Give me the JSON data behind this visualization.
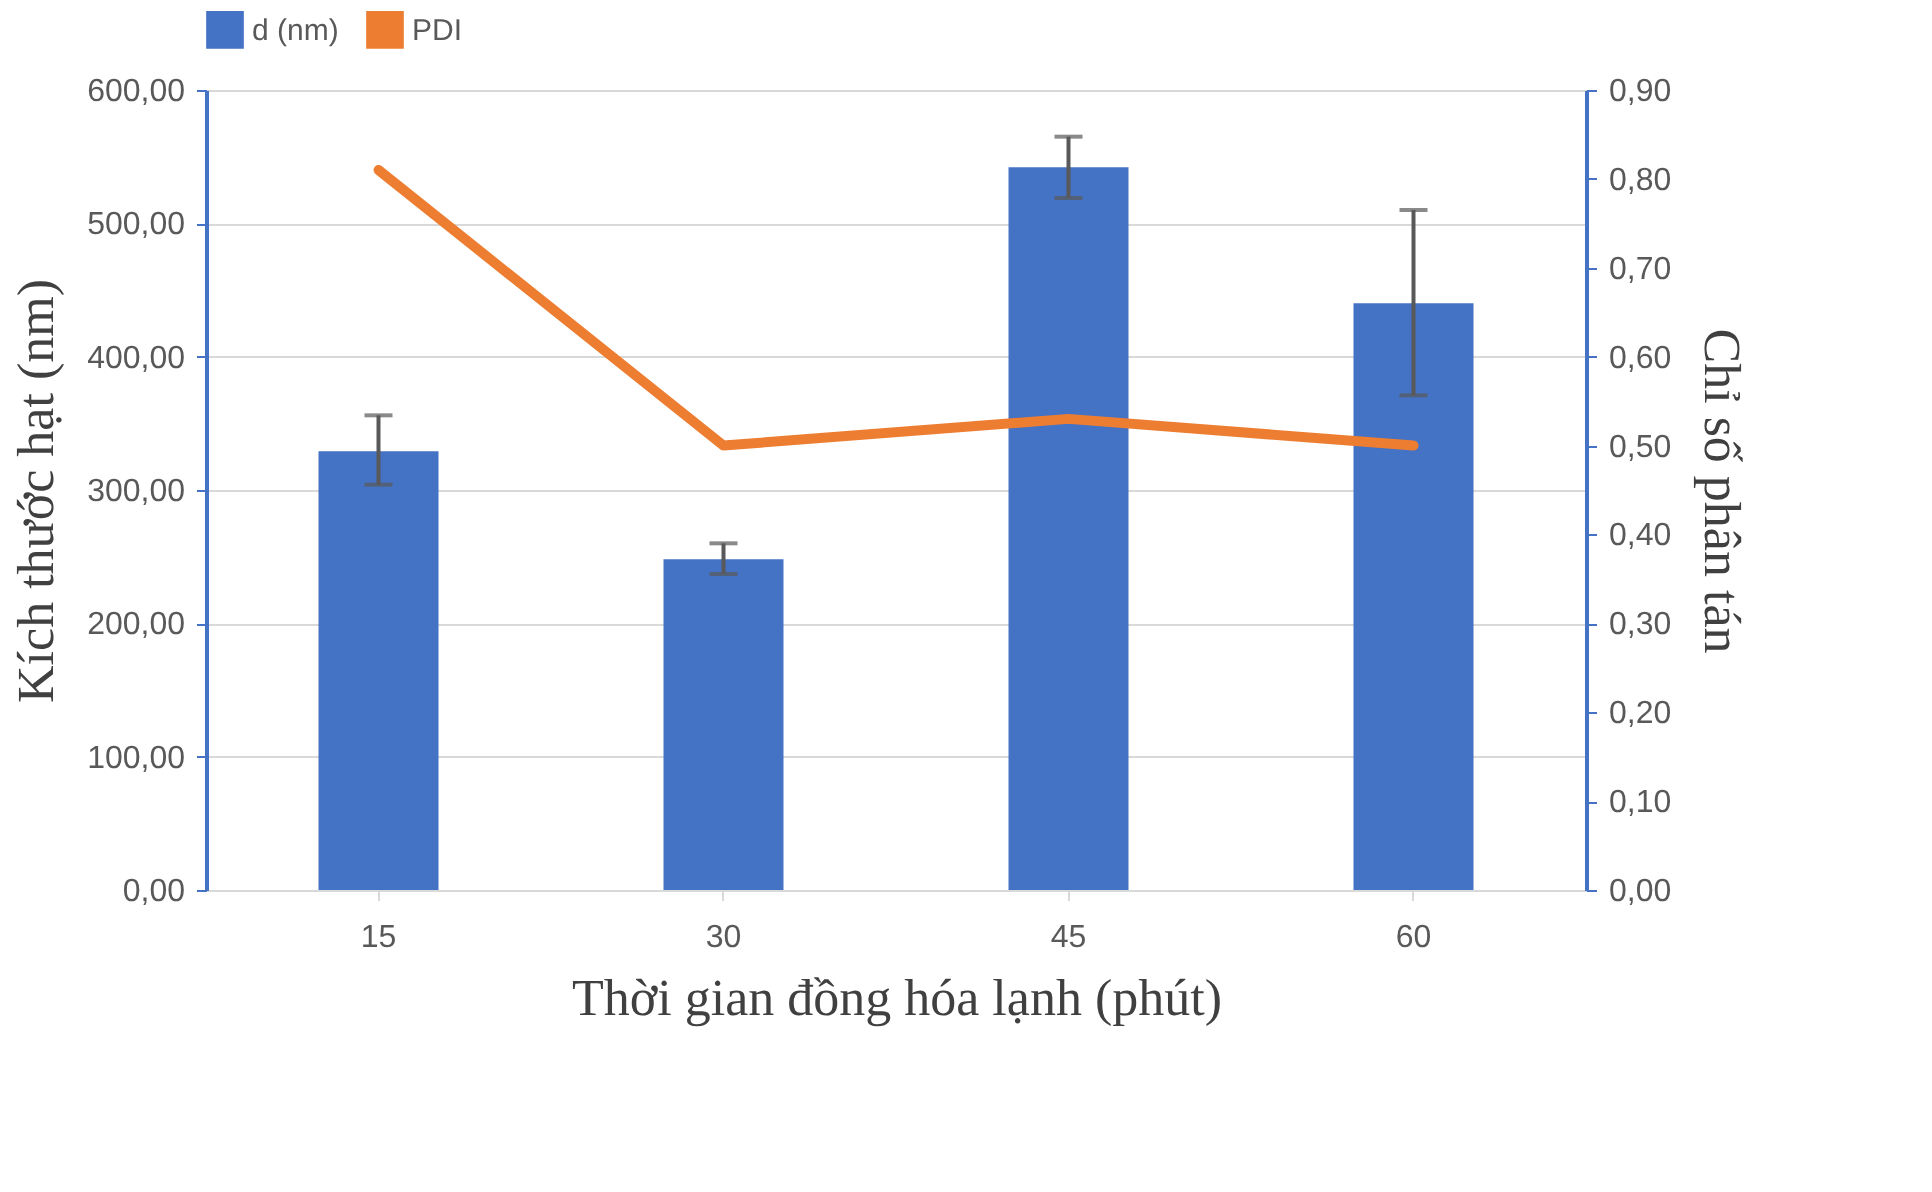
{
  "chart_data": {
    "type": "bar",
    "categories": [
      "15",
      "30",
      "45",
      "60"
    ],
    "xlabel": "Thời gian đồng hóa lạnh (phút)",
    "ylabel": "Kích thước hạt (nm)",
    "y2label": "Chỉ số phân tán",
    "series": [
      {
        "name": "d (nm)",
        "color": "#4472c4",
        "values": [
          329,
          248,
          542,
          440
        ],
        "errors": [
          [
            304,
            356
          ],
          [
            237,
            260
          ],
          [
            519,
            565
          ],
          [
            371,
            510
          ]
        ]
      },
      {
        "name": "PDI",
        "type": "line",
        "axis": "y2",
        "color": "#ed7d31",
        "values": [
          0.81,
          0.5,
          0.53,
          0.5
        ]
      }
    ],
    "ylim": [
      0,
      600
    ],
    "yticks": [
      {
        "value": 0,
        "label": "0,00"
      },
      {
        "value": 100,
        "label": "100,00"
      },
      {
        "value": 200,
        "label": "200,00"
      },
      {
        "value": 300,
        "label": "300,00"
      },
      {
        "value": 400,
        "label": "400,00"
      },
      {
        "value": 500,
        "label": "500,00"
      },
      {
        "value": 600,
        "label": "600,00"
      }
    ],
    "y2lim": [
      0,
      0.9
    ],
    "y2ticks": [
      {
        "value": 0,
        "label": "0,00"
      },
      {
        "value": 0.1,
        "label": "0,10"
      },
      {
        "value": 0.2,
        "label": "0,20"
      },
      {
        "value": 0.3,
        "label": "0,30"
      },
      {
        "value": 0.4,
        "label": "0,40"
      },
      {
        "value": 0.5,
        "label": "0,50"
      },
      {
        "value": 0.6,
        "label": "0,60"
      },
      {
        "value": 0.7,
        "label": "0,70"
      },
      {
        "value": 0.8,
        "label": "0,80"
      },
      {
        "value": 0.9,
        "label": "0,90"
      }
    ],
    "grid": "y",
    "legend": "top",
    "line_style": "solid",
    "marker": "none"
  }
}
